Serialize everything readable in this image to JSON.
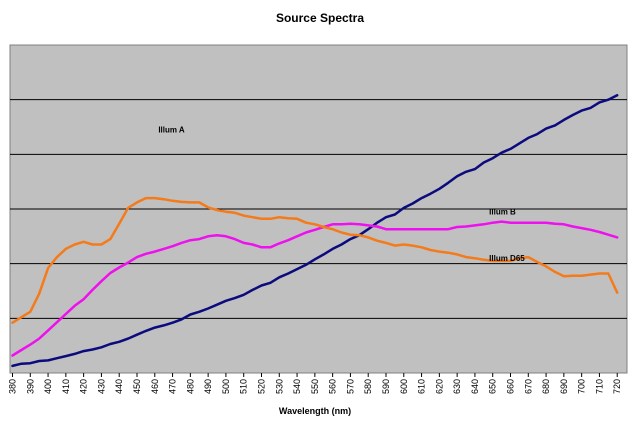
{
  "chart_data": {
    "type": "line",
    "title": "Source Spectra",
    "xlabel": "Wavelength (nm)",
    "ylabel": "",
    "x": [
      380,
      385,
      390,
      395,
      400,
      405,
      410,
      415,
      420,
      425,
      430,
      435,
      440,
      445,
      450,
      455,
      460,
      465,
      470,
      475,
      480,
      485,
      490,
      495,
      500,
      505,
      510,
      515,
      520,
      525,
      530,
      535,
      540,
      545,
      550,
      555,
      560,
      565,
      570,
      575,
      580,
      585,
      590,
      595,
      600,
      605,
      610,
      615,
      620,
      625,
      630,
      635,
      640,
      645,
      650,
      655,
      660,
      665,
      670,
      675,
      680,
      685,
      690,
      695,
      700,
      705,
      710,
      715,
      720
    ],
    "xlim": [
      378.6,
      725.5
    ],
    "ylim": [
      0,
      6
    ],
    "y_ticks_labeled": false,
    "grid": "horizontal",
    "legend": "none",
    "series": [
      {
        "name": "Illum A",
        "color": "#0b0b7e",
        "label_x": 462,
        "label_y": 4.4,
        "values": [
          0.13,
          0.17,
          0.18,
          0.22,
          0.23,
          0.27,
          0.31,
          0.35,
          0.4,
          0.43,
          0.47,
          0.53,
          0.57,
          0.63,
          0.7,
          0.77,
          0.83,
          0.87,
          0.92,
          0.98,
          1.07,
          1.12,
          1.18,
          1.25,
          1.32,
          1.37,
          1.43,
          1.52,
          1.6,
          1.65,
          1.75,
          1.82,
          1.9,
          1.98,
          2.08,
          2.17,
          2.27,
          2.35,
          2.45,
          2.52,
          2.63,
          2.75,
          2.85,
          2.9,
          3.02,
          3.1,
          3.2,
          3.28,
          3.37,
          3.48,
          3.6,
          3.68,
          3.73,
          3.85,
          3.93,
          4.03,
          4.1,
          4.2,
          4.3,
          4.37,
          4.47,
          4.53,
          4.63,
          4.72,
          4.8,
          4.85,
          4.95,
          5,
          5.08
        ]
      },
      {
        "name": "Illum B",
        "color": "#ee10ee",
        "label_x": 648,
        "label_y": 2.9,
        "values": [
          0.32,
          0.42,
          0.52,
          0.63,
          0.78,
          0.93,
          1.08,
          1.23,
          1.35,
          1.52,
          1.68,
          1.83,
          1.93,
          2.02,
          2.12,
          2.18,
          2.22,
          2.27,
          2.32,
          2.38,
          2.43,
          2.45,
          2.5,
          2.52,
          2.5,
          2.45,
          2.38,
          2.35,
          2.3,
          2.3,
          2.37,
          2.43,
          2.5,
          2.57,
          2.62,
          2.67,
          2.72,
          2.72,
          2.73,
          2.72,
          2.7,
          2.68,
          2.63,
          2.63,
          2.63,
          2.63,
          2.63,
          2.63,
          2.63,
          2.63,
          2.67,
          2.68,
          2.7,
          2.72,
          2.75,
          2.77,
          2.75,
          2.75,
          2.75,
          2.75,
          2.75,
          2.73,
          2.72,
          2.68,
          2.65,
          2.62,
          2.58,
          2.53,
          2.48
        ]
      },
      {
        "name": "Illum D65",
        "color": "#f47a1a",
        "label_x": 648,
        "label_y": 2.05,
        "values": [
          0.92,
          1.02,
          1.12,
          1.45,
          1.92,
          2.12,
          2.27,
          2.35,
          2.4,
          2.35,
          2.35,
          2.45,
          2.73,
          3.02,
          3.12,
          3.2,
          3.2,
          3.18,
          3.15,
          3.13,
          3.12,
          3.12,
          3.03,
          2.98,
          2.95,
          2.93,
          2.88,
          2.85,
          2.82,
          2.82,
          2.85,
          2.83,
          2.82,
          2.75,
          2.72,
          2.67,
          2.63,
          2.57,
          2.53,
          2.52,
          2.48,
          2.42,
          2.38,
          2.33,
          2.35,
          2.33,
          2.3,
          2.25,
          2.22,
          2.2,
          2.17,
          2.12,
          2.1,
          2.07,
          2.05,
          2.05,
          2.05,
          2.1,
          2.12,
          2.03,
          1.95,
          1.85,
          1.77,
          1.78,
          1.78,
          1.8,
          1.82,
          1.82,
          1.47
        ]
      }
    ]
  }
}
